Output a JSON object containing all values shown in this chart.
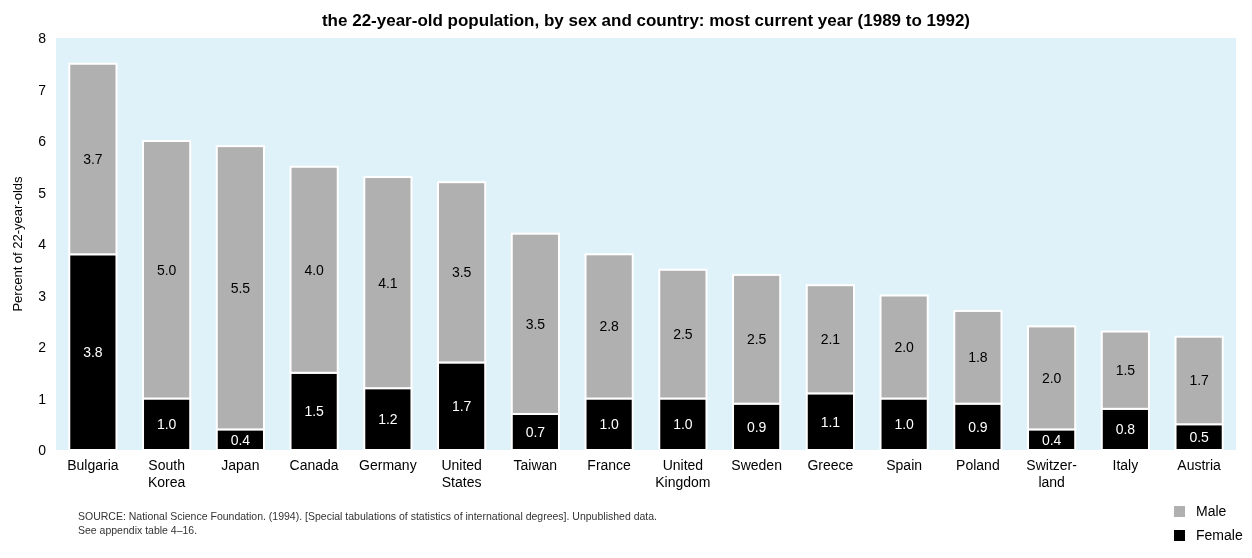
{
  "chart_data": {
    "type": "bar",
    "stacked": true,
    "title": "the 22-year-old population, by sex and country: most current year (1989 to 1992)",
    "ylabel": "Percent of 22-year-olds",
    "categories": [
      "Bulgaria",
      "South\nKorea",
      "Japan",
      "Canada",
      "Germany",
      "United\nStates",
      "Taiwan",
      "France",
      "United\nKingdom",
      "Sweden",
      "Greece",
      "Spain",
      "Poland",
      "Switzer-\nland",
      "Italy",
      "Austria"
    ],
    "series": [
      {
        "name": "Female",
        "color": "#000000",
        "values": [
          3.8,
          1.0,
          0.4,
          1.5,
          1.2,
          1.7,
          0.7,
          1.0,
          1.0,
          0.9,
          1.1,
          1.0,
          0.9,
          0.4,
          0.8,
          0.5
        ],
        "value_labels": [
          "3.8",
          "1.0",
          "0.4",
          "1.5",
          "1.2",
          "1.7",
          "0.7",
          "1.0",
          "1.0",
          "0.9",
          "1.1",
          "1.0",
          "0.9",
          "0.4",
          "0.8",
          "0.5"
        ]
      },
      {
        "name": "Male",
        "color": "#b0b0b0",
        "values": [
          3.7,
          5.0,
          5.5,
          4.0,
          4.1,
          3.5,
          3.5,
          2.8,
          2.5,
          2.5,
          2.1,
          2.0,
          1.8,
          2.0,
          1.5,
          1.7
        ],
        "value_labels": [
          "3.7",
          "5.0",
          "5.5",
          "4.0",
          "4.1",
          "3.5",
          "3.5",
          "2.8",
          "2.5",
          "2.5",
          "2.1",
          "2.0",
          "1.8",
          "2.0",
          "1.5",
          "1.7"
        ]
      }
    ],
    "ylim": [
      0,
      8
    ],
    "yticks": [
      0,
      1,
      2,
      3,
      4,
      5,
      6,
      7,
      8
    ],
    "grid": false,
    "legend": "bottom right",
    "annotations": [
      "SOURCE: National Science Foundation. (1994). [Special tabulations of statistics of international degrees]. Unpublished data.\nSee appendix table 4–16."
    ]
  }
}
